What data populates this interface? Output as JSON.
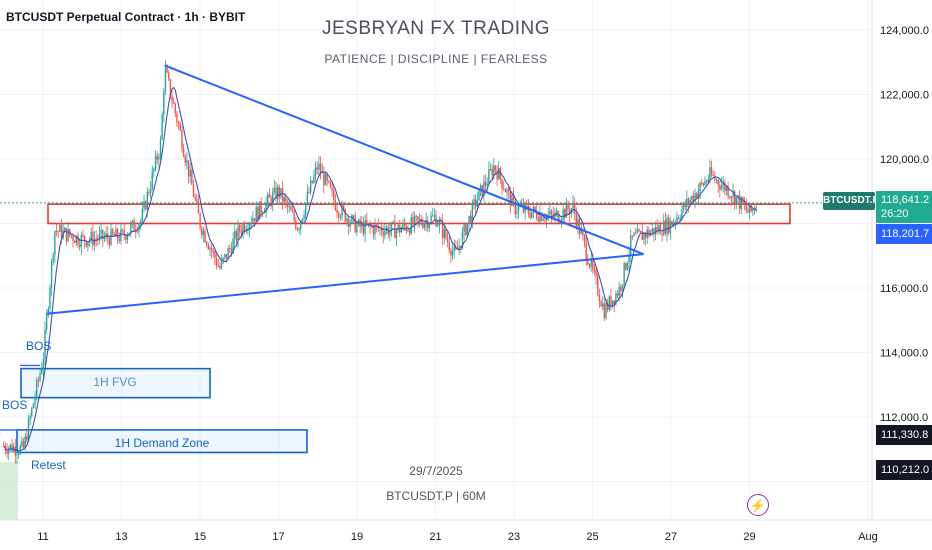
{
  "header": {
    "symbol_title": "BTCUSDT Perpetual Contract · 1h · BYBIT"
  },
  "watermark": {
    "title": "JESBRYAN FX TRADING",
    "subtitle": "PATIENCE   |   DISCIPLINE   |   FEARLESS",
    "date": "29/7/2025",
    "symbol_tf": "BTCUSDT.P | 60M"
  },
  "price_axis": {
    "ticks": [
      "124,000.0",
      "122,000.0",
      "120,000.0",
      "116,000.0",
      "114,000.0",
      "112,000.0"
    ]
  },
  "price_badges": {
    "symbol": "BTCUSDT.P",
    "last_price": "118,641.2",
    "countdown": "26:20",
    "ma_value": "118,201.7",
    "level_1": "111,330.8",
    "level_2": "110,212.0"
  },
  "time_axis": {
    "ticks": [
      "11",
      "13",
      "15",
      "17",
      "19",
      "21",
      "23",
      "25",
      "27",
      "29",
      "Aug"
    ]
  },
  "annotations": {
    "bos_upper": "BOS",
    "bos_lower": "BOS",
    "fvg_label": "1H FVG",
    "demand_label": "1H Demand Zone",
    "retest": "Retest"
  },
  "colors": {
    "up": "#26a69a",
    "down": "#ef5350",
    "trendline": "#2962ff",
    "zone_red": "#e53935",
    "ma": "#3f51b5",
    "box_blue": "#1565c0"
  },
  "chart_data": {
    "type": "candlestick",
    "title": "BTCUSDT Perpetual Contract · 1h · BYBIT",
    "y_unit": "USDT",
    "ylim": [
      109400,
      124800
    ],
    "x_dates": [
      "11",
      "13",
      "15",
      "17",
      "19",
      "21",
      "23",
      "25",
      "27",
      "29",
      "Aug"
    ],
    "approx_close_path": [
      {
        "date": "10",
        "price": 111100
      },
      {
        "date": "10.5",
        "price": 111000
      },
      {
        "date": "11",
        "price": 113800
      },
      {
        "date": "11.3",
        "price": 117800
      },
      {
        "date": "12",
        "price": 117500
      },
      {
        "date": "13",
        "price": 117600
      },
      {
        "date": "13.5",
        "price": 118100
      },
      {
        "date": "14",
        "price": 120500
      },
      {
        "date": "14.1",
        "price": 122800
      },
      {
        "date": "14.5",
        "price": 120800
      },
      {
        "date": "15",
        "price": 118000
      },
      {
        "date": "15.5",
        "price": 116600
      },
      {
        "date": "16",
        "price": 117800
      },
      {
        "date": "17",
        "price": 119000
      },
      {
        "date": "17.5",
        "price": 117900
      },
      {
        "date": "18",
        "price": 119800
      },
      {
        "date": "18.5",
        "price": 118500
      },
      {
        "date": "19",
        "price": 117900
      },
      {
        "date": "20",
        "price": 117800
      },
      {
        "date": "21",
        "price": 118200
      },
      {
        "date": "21.5",
        "price": 117000
      },
      {
        "date": "22",
        "price": 118600
      },
      {
        "date": "22.5",
        "price": 119800
      },
      {
        "date": "23",
        "price": 118500
      },
      {
        "date": "24",
        "price": 118200
      },
      {
        "date": "24.5",
        "price": 118500
      },
      {
        "date": "25",
        "price": 116500
      },
      {
        "date": "25.3",
        "price": 115300
      },
      {
        "date": "25.7",
        "price": 116000
      },
      {
        "date": "26",
        "price": 117500
      },
      {
        "date": "27",
        "price": 118000
      },
      {
        "date": "28",
        "price": 119500
      },
      {
        "date": "28.5",
        "price": 119000
      },
      {
        "date": "29",
        "price": 118300
      },
      {
        "date": "29.2",
        "price": 118641
      }
    ],
    "resistance_zone": [
      118000,
      118600
    ],
    "triangle": {
      "upper_line": [
        {
          "date": "14.1",
          "price": 122900
        },
        {
          "date": "26.3",
          "price": 117050
        }
      ],
      "lower_line": [
        {
          "date": "11.1",
          "price": 115200
        },
        {
          "date": "26.3",
          "price": 117050
        }
      ]
    },
    "fvg_zone": [
      112600,
      113500
    ],
    "demand_zone": [
      110900,
      111600
    ],
    "last_price": 118641.2,
    "ma_value": 118201.7
  }
}
